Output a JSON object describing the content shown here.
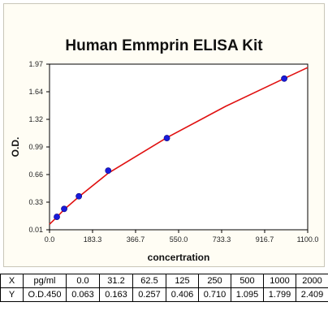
{
  "chart_data": {
    "type": "scatter",
    "title": "Human Emmprin ELISA Kit",
    "xlabel": "concertration",
    "ylabel": "O.D.",
    "xlim": [
      0,
      1100
    ],
    "ylim": [
      0.01,
      1.97
    ],
    "x_ticks": [
      "0.0",
      "183.3",
      "366.7",
      "550.0",
      "733.3",
      "916.7",
      "1100.0"
    ],
    "y_ticks": [
      "0.01",
      "0.33",
      "0.66",
      "0.99",
      "1.32",
      "1.64",
      "1.97"
    ],
    "series": [
      {
        "marker_color": "#1a1adb",
        "x": [
          31.2,
          62.5,
          125,
          250,
          500,
          1000
        ],
        "y": [
          0.163,
          0.257,
          0.406,
          0.71,
          1.095,
          1.799
        ]
      }
    ],
    "fit_curve": {
      "color": "#e01010",
      "x": [
        0,
        31.2,
        62.5,
        125,
        250,
        500,
        750,
        1000,
        1100
      ],
      "y": [
        0.075,
        0.16,
        0.25,
        0.4,
        0.68,
        1.1,
        1.47,
        1.8,
        1.93
      ]
    },
    "grid": false
  },
  "table": {
    "rows": [
      [
        "X",
        "pg/ml",
        "0.0",
        "31.2",
        "62.5",
        "125",
        "250",
        "500",
        "1000",
        "2000"
      ],
      [
        "Y",
        "O.D.450",
        "0.063",
        "0.163",
        "0.257",
        "0.406",
        "0.710",
        "1.095",
        "1.799",
        "2.409"
      ]
    ]
  }
}
